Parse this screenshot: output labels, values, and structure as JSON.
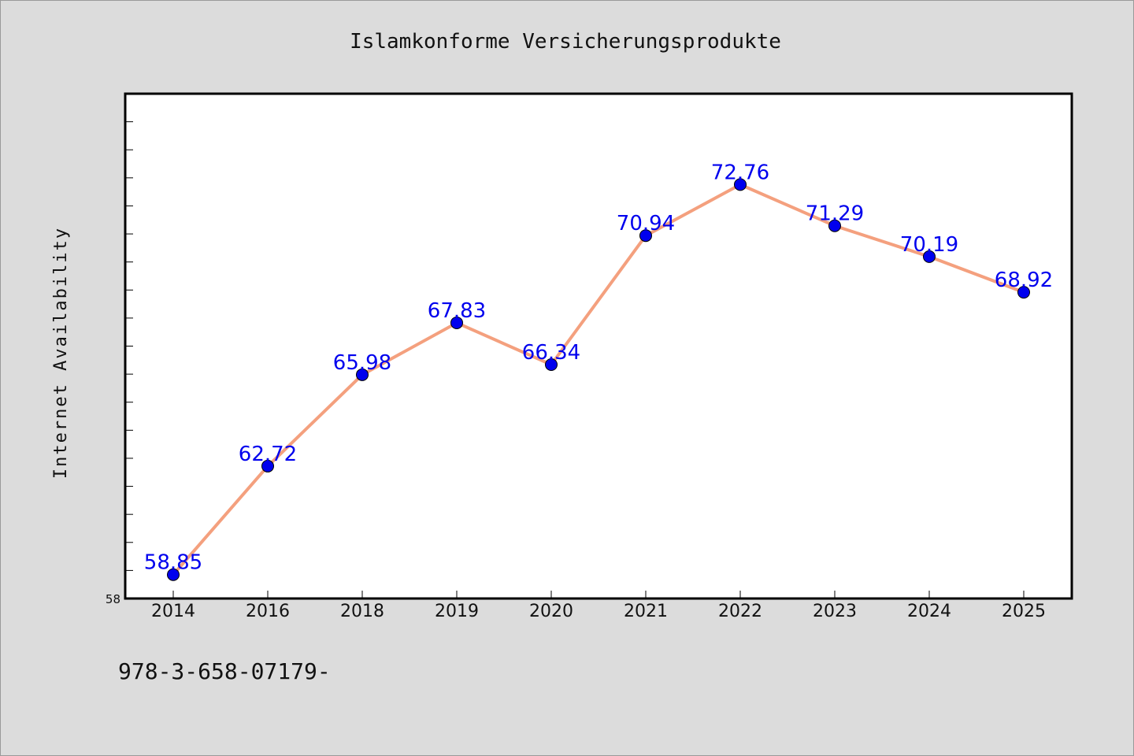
{
  "chart_data": {
    "type": "line",
    "title": "Islamkonforme Versicherungsprodukte",
    "xlabel": "",
    "ylabel": "Internet Availability",
    "categories": [
      "2014",
      "2016",
      "2018",
      "2019",
      "2020",
      "2021",
      "2022",
      "2023",
      "2024",
      "2025"
    ],
    "series": [
      {
        "values": [
          58.85,
          62.72,
          65.98,
          67.83,
          66.34,
          70.94,
          72.76,
          71.29,
          70.19,
          68.92
        ]
      }
    ],
    "ylim": [
      58.0,
      76.0
    ],
    "y_tick_labels": [
      "58"
    ],
    "grid": false,
    "legend": "none",
    "colors": {
      "line": "#f4a07e",
      "marker": "#0000ee",
      "data_label": "#0000ee",
      "plot_background": "#ffffff",
      "figure_background": "#dcdcdc"
    }
  },
  "footer": {
    "text": "978-3-658-07179-"
  }
}
